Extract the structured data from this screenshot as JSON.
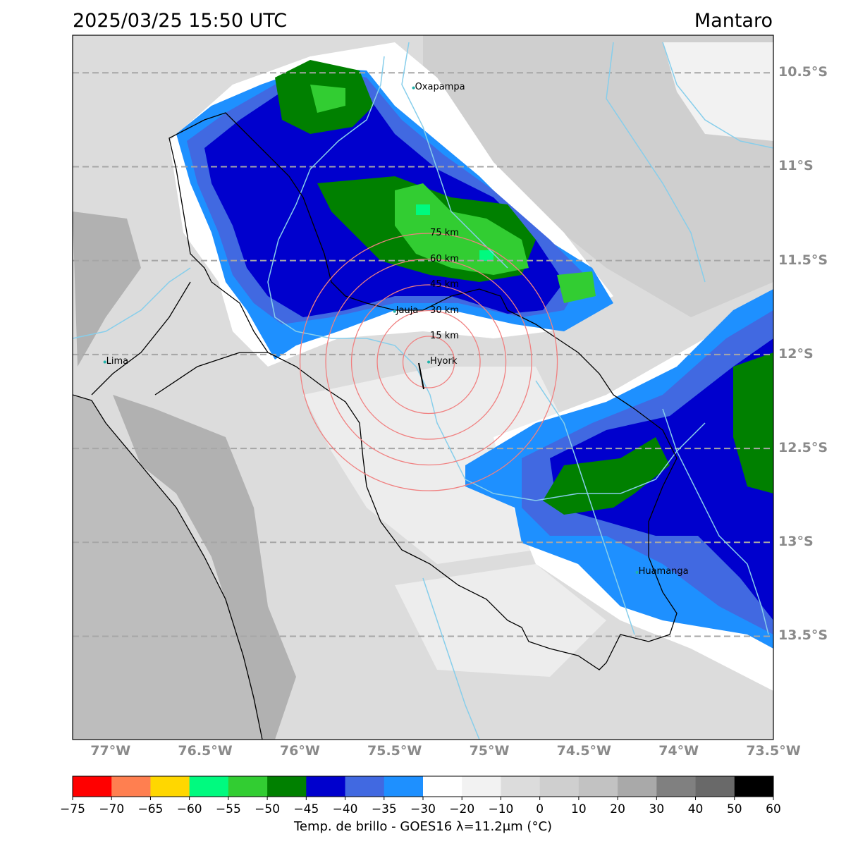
{
  "header": {
    "datetime": "2025/03/25 15:50 UTC",
    "basin": "Mantaro"
  },
  "map": {
    "lon_range": [
      -77.2,
      -73.5
    ],
    "lat_range": [
      -10.3,
      -14.05
    ],
    "lat_ticks": [
      {
        "value": -10.5,
        "label": "10.5°S"
      },
      {
        "value": -11.0,
        "label": "11°S"
      },
      {
        "value": -11.5,
        "label": "11.5°S"
      },
      {
        "value": -12.0,
        "label": "12°S"
      },
      {
        "value": -12.5,
        "label": "12.5°S"
      },
      {
        "value": -13.0,
        "label": "13°S"
      },
      {
        "value": -13.5,
        "label": "13.5°S"
      }
    ],
    "lon_ticks": [
      {
        "value": -77.0,
        "label": "77°W"
      },
      {
        "value": -76.5,
        "label": "76.5°W"
      },
      {
        "value": -76.0,
        "label": "76°W"
      },
      {
        "value": -75.5,
        "label": "75.5°W"
      },
      {
        "value": -75.0,
        "label": "75°W"
      },
      {
        "value": -74.5,
        "label": "74.5°W"
      },
      {
        "value": -74.0,
        "label": "74°W"
      },
      {
        "value": -73.5,
        "label": "73.5°W"
      }
    ],
    "cities": [
      {
        "name": "Oxapampa",
        "lon": -75.4,
        "lat": -10.58
      },
      {
        "name": "Jauja",
        "lon": -75.5,
        "lat": -11.77
      },
      {
        "name": "Hyork",
        "lon": -75.32,
        "lat": -12.04
      },
      {
        "name": "Lima",
        "lon": -77.03,
        "lat": -12.04
      },
      {
        "name": "Huamanga",
        "lon": -74.22,
        "lat": -13.16
      }
    ],
    "range_rings": {
      "center": {
        "lon": -75.32,
        "lat": -12.04
      },
      "labels": [
        "15 km",
        "30 km",
        "45 km",
        "60 km",
        "75 km"
      ]
    },
    "colors": {
      "grid": "#a6a6a6",
      "rivers": "#87ceeb",
      "rings": "#f08080",
      "ocean": "#bdbdbd"
    }
  },
  "colorbar": {
    "label": "Temp. de brillo - GOES16 λ=11.2μm (°C)",
    "ticks": [
      "−75",
      "−70",
      "−65",
      "−60",
      "−55",
      "−50",
      "−45",
      "−40",
      "−35",
      "−30",
      "−20",
      "−10",
      "0",
      "10",
      "20",
      "30",
      "40",
      "50",
      "60"
    ],
    "colors": [
      "#ff0000",
      "#ff7f50",
      "#ffd700",
      "#00fa7f",
      "#32cd32",
      "#008000",
      "#0000cd",
      "#4169e1",
      "#1e90ff",
      "#ffffff",
      "#f2f2f2",
      "#dcdcdc",
      "#cfcfcf",
      "#c2c2c2",
      "#a9a9a9",
      "#808080",
      "#696969",
      "#000000"
    ]
  }
}
